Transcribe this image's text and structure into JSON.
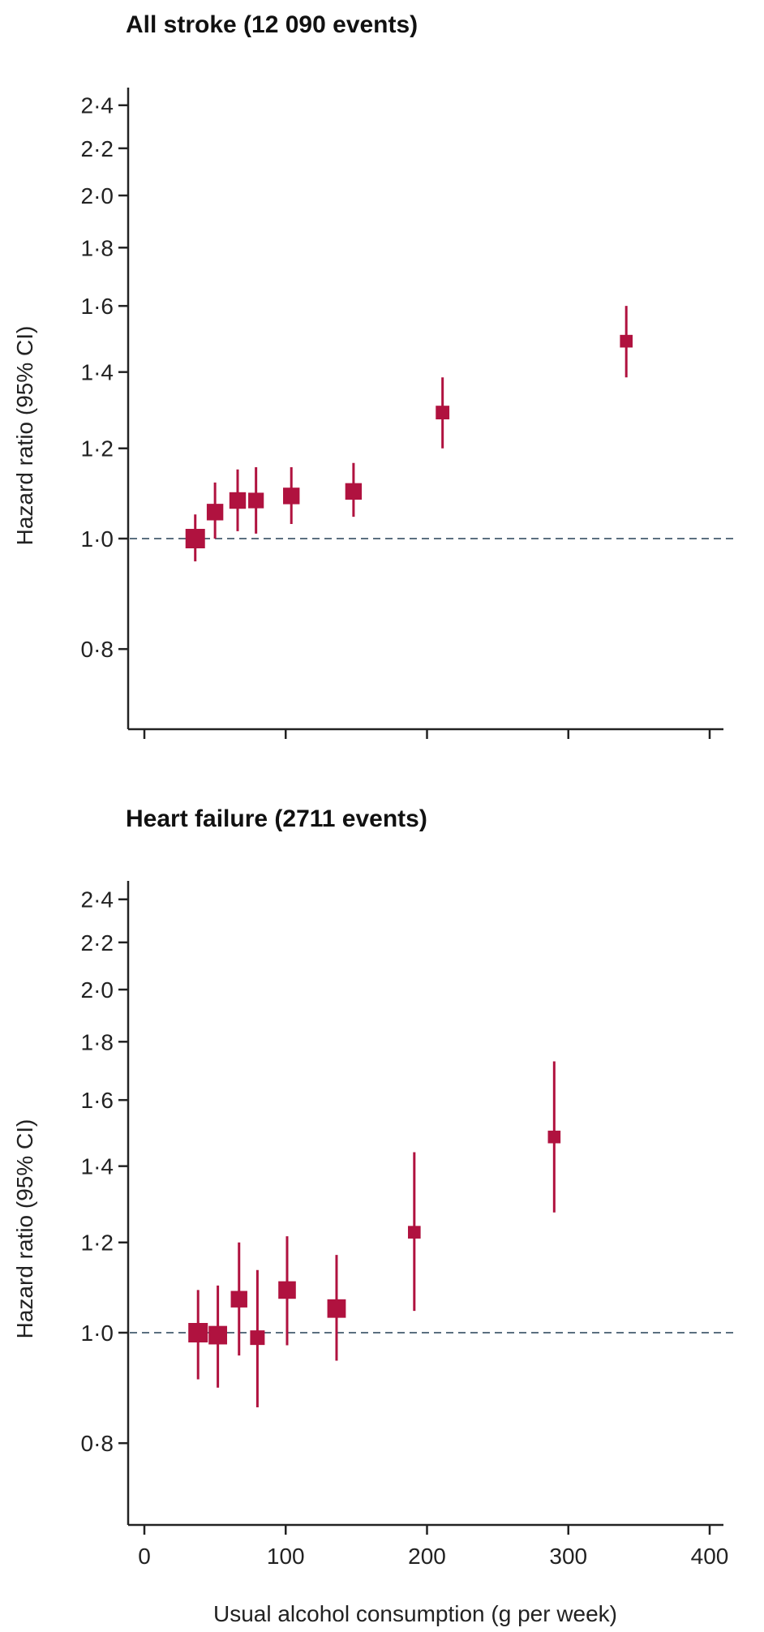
{
  "chart_data": [
    {
      "type": "scatter",
      "title": "All stroke (12 090 events)",
      "ylabel": "Hazard ratio (95% CI)",
      "xlabel": "",
      "y_scale": "log",
      "ylim": [
        0.7,
        2.5
      ],
      "xlim": [
        0,
        400
      ],
      "yticks": [
        "0·8",
        "1·0",
        "1·2",
        "1·4",
        "1·6",
        "1·8",
        "2·0",
        "2·2",
        "2·4"
      ],
      "ytick_values": [
        0.8,
        1.0,
        1.2,
        1.4,
        1.6,
        1.8,
        2.0,
        2.2,
        2.4
      ],
      "xticks": [],
      "xtick_values": [
        0,
        100,
        200,
        300,
        400
      ],
      "reference_line": 1.0,
      "marker_color": "#b0123f",
      "points": [
        {
          "x": 36,
          "hr": 1.0,
          "lo": 0.955,
          "hi": 1.05,
          "weight": 1.0
        },
        {
          "x": 50,
          "hr": 1.055,
          "lo": 1.0,
          "hi": 1.12,
          "weight": 0.85
        },
        {
          "x": 66,
          "hr": 1.08,
          "lo": 1.015,
          "hi": 1.15,
          "weight": 0.85
        },
        {
          "x": 79,
          "hr": 1.08,
          "lo": 1.01,
          "hi": 1.155,
          "weight": 0.8
        },
        {
          "x": 104,
          "hr": 1.09,
          "lo": 1.03,
          "hi": 1.155,
          "weight": 0.85
        },
        {
          "x": 148,
          "hr": 1.1,
          "lo": 1.045,
          "hi": 1.165,
          "weight": 0.85
        },
        {
          "x": 211,
          "hr": 1.29,
          "lo": 1.2,
          "hi": 1.385,
          "weight": 0.7
        },
        {
          "x": 341,
          "hr": 1.49,
          "lo": 1.385,
          "hi": 1.6,
          "weight": 0.65
        }
      ]
    },
    {
      "type": "scatter",
      "title": "Heart failure (2711 events)",
      "ylabel": "Hazard ratio (95% CI)",
      "xlabel": "Usual alcohol consumption (g per week)",
      "y_scale": "log",
      "ylim": [
        0.7,
        2.5
      ],
      "xlim": [
        0,
        400
      ],
      "yticks": [
        "0·8",
        "1·0",
        "1·2",
        "1·4",
        "1·6",
        "1·8",
        "2·0",
        "2·2",
        "2·4"
      ],
      "ytick_values": [
        0.8,
        1.0,
        1.2,
        1.4,
        1.6,
        1.8,
        2.0,
        2.2,
        2.4
      ],
      "xticks": [
        "0",
        "100",
        "200",
        "300",
        "400"
      ],
      "xtick_values": [
        0,
        100,
        200,
        300,
        400
      ],
      "reference_line": 1.0,
      "marker_color": "#b0123f",
      "points": [
        {
          "x": 38,
          "hr": 1.0,
          "lo": 0.91,
          "hi": 1.09,
          "weight": 1.0
        },
        {
          "x": 52,
          "hr": 0.995,
          "lo": 0.895,
          "hi": 1.1,
          "weight": 0.95
        },
        {
          "x": 67,
          "hr": 1.07,
          "lo": 0.955,
          "hi": 1.2,
          "weight": 0.85
        },
        {
          "x": 80,
          "hr": 0.99,
          "lo": 0.86,
          "hi": 1.135,
          "weight": 0.75
        },
        {
          "x": 101,
          "hr": 1.09,
          "lo": 0.975,
          "hi": 1.215,
          "weight": 0.9
        },
        {
          "x": 136,
          "hr": 1.05,
          "lo": 0.945,
          "hi": 1.17,
          "weight": 0.95
        },
        {
          "x": 191,
          "hr": 1.225,
          "lo": 1.045,
          "hi": 1.44,
          "weight": 0.65
        },
        {
          "x": 290,
          "hr": 1.485,
          "lo": 1.275,
          "hi": 1.73,
          "weight": 0.65
        }
      ]
    }
  ]
}
